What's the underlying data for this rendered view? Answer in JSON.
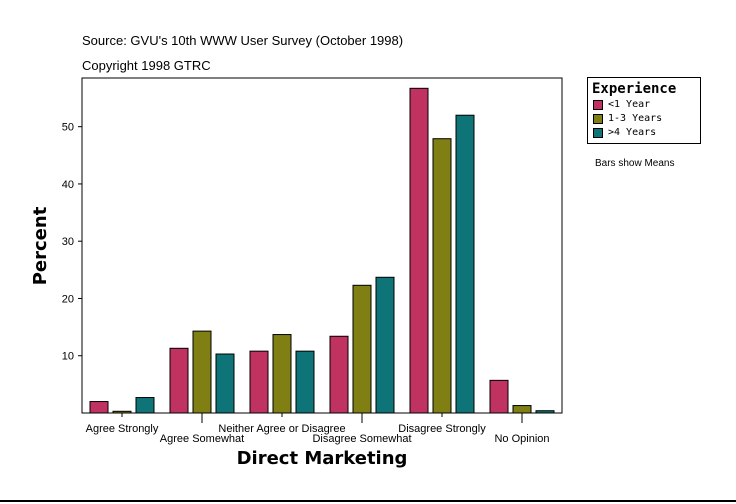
{
  "source_line": "Source: GVU's 10th WWW User Survey (October 1998)",
  "copyright_line": "Copyright 1998 GTRC",
  "bars_note": "Bars show Means",
  "legend_title": "Experience",
  "chart_data": {
    "type": "bar",
    "xlabel": "Direct Marketing",
    "ylabel": "Percent",
    "ylim": [
      0,
      58.5
    ],
    "yticks": [
      10,
      20,
      30,
      40,
      50
    ],
    "categories": [
      "Agree Strongly",
      "Agree Somewhat",
      "Neither Agree or Disagree",
      "Disagree Somewhat",
      "Disagree Strongly",
      "No Opinion"
    ],
    "series": [
      {
        "name": "<1 Year",
        "color": "#c0325f",
        "values": [
          2.0,
          11.3,
          10.8,
          13.4,
          56.7,
          5.7
        ]
      },
      {
        "name": "1-3 Years",
        "color": "#7f7f14",
        "values": [
          0.3,
          14.3,
          13.7,
          22.3,
          47.9,
          1.3
        ]
      },
      {
        "name": ">4 Years",
        "color": "#0f7478",
        "values": [
          2.7,
          10.3,
          10.8,
          23.7,
          52.0,
          0.4
        ]
      }
    ]
  }
}
